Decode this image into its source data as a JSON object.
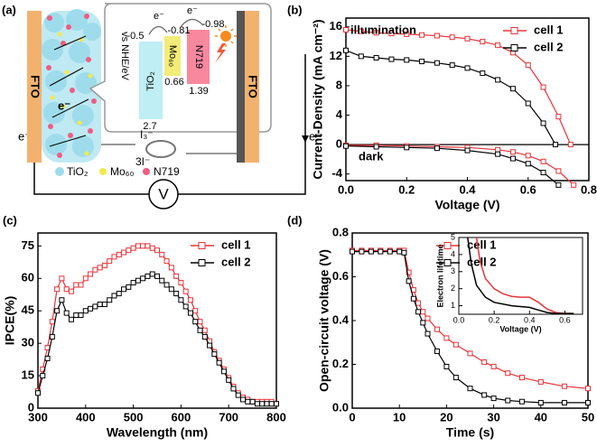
{
  "diagram": {
    "label": "(a)",
    "electrode_left": "FTO",
    "electrode_right": "FTO",
    "electron_labels": [
      "e⁻",
      "e⁻",
      "e⁻",
      "e⁻",
      "e⁻"
    ],
    "energy_axis": "vs NHE/eV",
    "levels": {
      "tio2_cb": "-0.5",
      "mo60_lumo": "-0.81",
      "n719_lumo": "-0.98",
      "mo60_homo": "0.66",
      "n719_homo": "1.39",
      "tio2_vb": "2.7"
    },
    "boxes": [
      "TiO₂",
      "Mo₆₀",
      "N719"
    ],
    "redox": [
      "I₃⁻",
      "3I⁻"
    ],
    "meter": "V",
    "legend": [
      "TiO₂",
      "Mo₆₀",
      "N719"
    ]
  },
  "chart_data": [
    {
      "type": "line",
      "label": "(b)",
      "xlabel": "Voltage (V)",
      "ylabel": "Current-Density (mA cm⁻²)",
      "annotations": [
        "illumination",
        "dark"
      ],
      "zero_line": true,
      "legend": "upper right",
      "xlim": [
        0,
        0.8
      ],
      "ylim": [
        -4.9,
        17.2
      ],
      "xticks": [
        {
          "value": 0,
          "label": "0.0"
        },
        0.2,
        0.4,
        0.6,
        0.8
      ],
      "yticks": [
        -4,
        0,
        4,
        8,
        12,
        16
      ],
      "series": [
        {
          "name": "cell 1",
          "color": "#e8333a",
          "x": [
            0,
            0.05,
            0.1,
            0.15,
            0.2,
            0.25,
            0.3,
            0.35,
            0.4,
            0.45,
            0.5,
            0.55,
            0.6,
            0.65,
            0.7,
            0.74
          ],
          "values": [
            15.6,
            15.4,
            15.2,
            15.1,
            15.0,
            14.9,
            14.8,
            14.6,
            14.4,
            14.0,
            13.5,
            12.5,
            10.8,
            7.8,
            3.8,
            0
          ]
        },
        {
          "name": "cell 2",
          "color": "#000000",
          "x": [
            0,
            0.05,
            0.1,
            0.15,
            0.2,
            0.25,
            0.3,
            0.35,
            0.4,
            0.45,
            0.5,
            0.55,
            0.6,
            0.65,
            0.69
          ],
          "values": [
            12.8,
            12.0,
            11.8,
            11.6,
            11.5,
            11.3,
            11.1,
            10.8,
            10.4,
            9.7,
            8.8,
            7.6,
            5.6,
            2.9,
            0
          ]
        },
        {
          "color": "#e8333a",
          "x": [
            0,
            0.1,
            0.2,
            0.3,
            0.4,
            0.5,
            0.55,
            0.6,
            0.65,
            0.7,
            0.75
          ],
          "values": [
            -0.1,
            -0.1,
            -0.2,
            -0.3,
            -0.4,
            -0.7,
            -1.0,
            -1.5,
            -2.3,
            -3.6,
            -5.5
          ]
        },
        {
          "color": "#000000",
          "x": [
            0,
            0.1,
            0.2,
            0.3,
            0.4,
            0.5,
            0.55,
            0.6,
            0.65,
            0.7
          ],
          "values": [
            -0.2,
            -0.3,
            -0.4,
            -0.5,
            -0.8,
            -1.3,
            -1.9,
            -2.6,
            -3.8,
            -5.5
          ]
        }
      ]
    },
    {
      "type": "line",
      "label": "(c)",
      "xlabel": "Wavelength (nm)",
      "ylabel": "IPCE(%)",
      "legend": "upper right",
      "xlim": [
        300,
        800
      ],
      "ylim": [
        0,
        81
      ],
      "xticks": [
        300,
        400,
        500,
        600,
        700,
        800
      ],
      "yticks": [
        0,
        15,
        30,
        45,
        60,
        75
      ],
      "series": [
        {
          "name": "cell 1",
          "color": "#e8333a",
          "x": [
            300,
            310,
            320,
            330,
            340,
            350,
            360,
            370,
            380,
            390,
            400,
            410,
            420,
            430,
            440,
            450,
            460,
            470,
            480,
            490,
            500,
            510,
            520,
            530,
            540,
            550,
            560,
            570,
            580,
            590,
            600,
            610,
            620,
            630,
            640,
            650,
            660,
            670,
            680,
            690,
            700,
            710,
            720,
            730,
            740,
            750,
            760,
            770,
            780,
            790,
            800
          ],
          "values": [
            8,
            18,
            28,
            40,
            55,
            60,
            55,
            54,
            57,
            57,
            60,
            62,
            64,
            65,
            66,
            68,
            70,
            71,
            72,
            73,
            74,
            75,
            75,
            75,
            74,
            73,
            71,
            68,
            65,
            61,
            58,
            54,
            50,
            45,
            40,
            36,
            31,
            26,
            22,
            18,
            14,
            10,
            7,
            5,
            4,
            3,
            3,
            3,
            3,
            3,
            2
          ]
        },
        {
          "name": "cell 2",
          "color": "#000000",
          "x": [
            300,
            310,
            320,
            330,
            340,
            350,
            360,
            370,
            380,
            390,
            400,
            410,
            420,
            430,
            440,
            450,
            460,
            470,
            480,
            490,
            500,
            510,
            520,
            530,
            540,
            550,
            560,
            570,
            580,
            590,
            600,
            610,
            620,
            630,
            640,
            650,
            660,
            670,
            680,
            690,
            700,
            710,
            720,
            730,
            740,
            750,
            760,
            770,
            780,
            790,
            800
          ],
          "values": [
            7,
            15,
            23,
            33,
            45,
            50,
            44,
            41,
            43,
            43,
            45,
            46,
            47,
            48,
            48,
            50,
            52,
            53,
            55,
            56,
            58,
            59,
            60,
            61,
            62,
            61,
            59,
            57,
            55,
            53,
            50,
            47,
            44,
            40,
            36,
            33,
            29,
            25,
            21,
            17,
            13,
            9,
            6,
            4,
            3,
            3,
            2,
            2,
            2,
            2,
            2
          ]
        }
      ]
    },
    {
      "type": "line",
      "label": "(d)",
      "xlabel": "Time (s)",
      "ylabel": "Open-circuit voltage (V)",
      "legend": "upper right",
      "xlim": [
        0,
        50
      ],
      "ylim": [
        0,
        0.8
      ],
      "xticks": [
        0,
        10,
        20,
        30,
        40,
        50
      ],
      "yticks": [
        {
          "value": 0,
          "label": "0.0"
        },
        0.2,
        0.4,
        0.6,
        0.8
      ],
      "series": [
        {
          "name": "cell 1",
          "color": "#e8333a",
          "x": [
            0,
            2,
            4,
            6,
            8,
            10,
            11,
            12,
            13,
            14,
            15,
            16,
            18,
            20,
            22,
            25,
            28,
            30,
            33,
            36,
            40,
            45,
            50
          ],
          "values": [
            0.72,
            0.72,
            0.72,
            0.72,
            0.72,
            0.72,
            0.72,
            0.62,
            0.54,
            0.48,
            0.44,
            0.41,
            0.36,
            0.32,
            0.29,
            0.25,
            0.21,
            0.19,
            0.16,
            0.14,
            0.12,
            0.1,
            0.09
          ]
        },
        {
          "name": "cell 2",
          "color": "#000000",
          "x": [
            0,
            2,
            4,
            6,
            8,
            10,
            11,
            12,
            13,
            14,
            15,
            16,
            18,
            20,
            22,
            25,
            28,
            30,
            33,
            36,
            40,
            45,
            50
          ],
          "values": [
            0.715,
            0.715,
            0.715,
            0.715,
            0.715,
            0.715,
            0.71,
            0.58,
            0.5,
            0.44,
            0.39,
            0.34,
            0.26,
            0.19,
            0.14,
            0.09,
            0.06,
            0.045,
            0.035,
            0.03,
            0.025,
            0.025,
            0.025
          ]
        }
      ],
      "inset": {
        "type": "line",
        "xlabel": "Voltage (V)",
        "ylabel": "Electron lifetime",
        "xlim": [
          0,
          0.7
        ],
        "ylim": [
          0.5,
          5
        ],
        "xticks": [
          {
            "value": 0,
            "label": "0.0"
          },
          0.2,
          0.4,
          0.6
        ],
        "yticks": [
          1,
          2,
          3,
          4,
          5
        ],
        "series": [
          {
            "color": "#e8333a",
            "x": [
              0.1,
              0.12,
              0.15,
              0.2,
              0.25,
              0.3,
              0.35,
              0.4,
              0.45,
              0.5,
              0.55,
              0.6,
              0.65
            ],
            "values": [
              5,
              3.6,
              2.6,
              2.0,
              1.7,
              1.55,
              1.5,
              1.5,
              1.2,
              0.8,
              0.6,
              0.55,
              0.55
            ]
          },
          {
            "color": "#000000",
            "x": [
              0.05,
              0.07,
              0.1,
              0.15,
              0.2,
              0.3,
              0.4,
              0.45,
              0.5,
              0.55,
              0.6,
              0.65
            ],
            "values": [
              5,
              3.5,
              2.2,
              1.5,
              1.2,
              1.0,
              0.9,
              0.75,
              0.6,
              0.55,
              0.55,
              0.55
            ]
          }
        ]
      }
    }
  ]
}
